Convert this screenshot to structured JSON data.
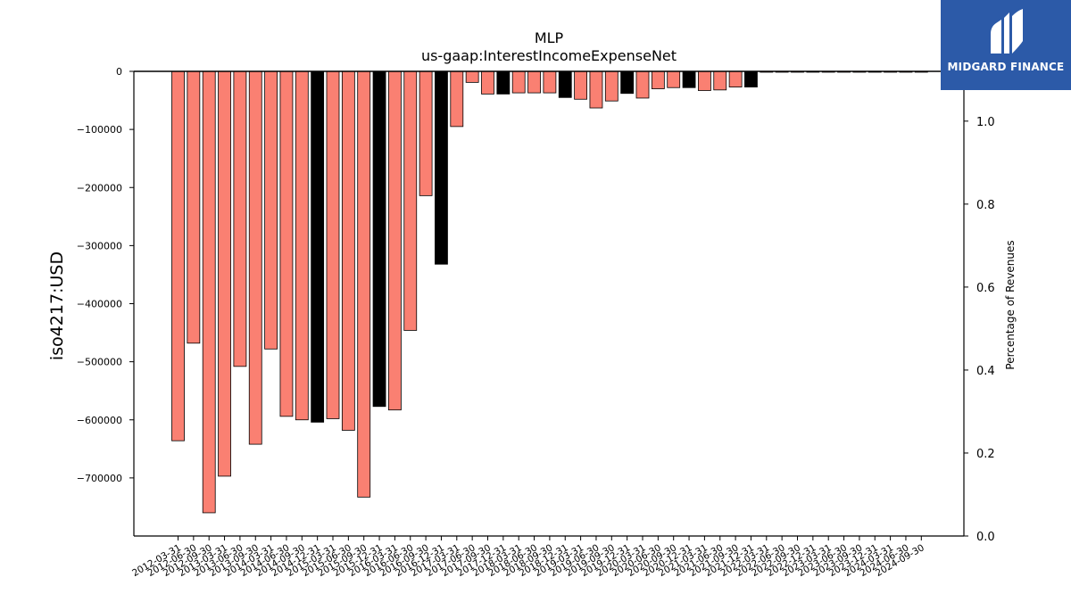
{
  "chart_data": {
    "type": "bar",
    "title": "MLP",
    "subtitle": "us-gaap:InterestIncomeExpenseNet",
    "ylabel": "iso4217:USD",
    "ylabel_right": "Percentage of Revenues",
    "ylim": [
      -800000,
      0
    ],
    "ylim_right": [
      0.0,
      1.12
    ],
    "yticks": [
      0,
      -100000,
      -200000,
      -300000,
      -400000,
      -500000,
      -600000,
      -700000
    ],
    "yticks_right": [
      "0.0",
      "0.2",
      "0.4",
      "0.6",
      "0.8",
      "1.0"
    ],
    "grid": false,
    "colors": {
      "quarter": "#fa8072",
      "year_end": "#000000"
    },
    "categories": [
      "2012-03-31",
      "2012-06-30",
      "2012-09-30",
      "2013-03-31",
      "2013-06-30",
      "2013-09-30",
      "2014-03-31",
      "2014-06-30",
      "2014-09-30",
      "2014-12-31",
      "2015-03-31",
      "2015-06-30",
      "2015-09-30",
      "2015-12-31",
      "2016-03-31",
      "2016-06-30",
      "2016-09-30",
      "2016-12-31",
      "2017-03-31",
      "2017-06-30",
      "2017-09-30",
      "2017-12-31",
      "2018-03-31",
      "2018-06-30",
      "2018-09-30",
      "2018-12-31",
      "2019-03-31",
      "2019-06-30",
      "2019-09-30",
      "2019-12-31",
      "2020-03-31",
      "2020-06-30",
      "2020-09-30",
      "2020-12-31",
      "2021-03-31",
      "2021-06-30",
      "2021-09-30",
      "2021-12-31",
      "2022-03-31",
      "2022-06-30",
      "2022-09-30",
      "2022-12-31",
      "2023-03-31",
      "2023-06-30",
      "2023-09-30",
      "2023-12-31",
      "2024-03-31",
      "2024-06-30",
      "2024-09-30"
    ],
    "values": [
      -636000,
      -468000,
      -760000,
      -697000,
      -508000,
      -642000,
      -478000,
      -594000,
      -600000,
      -604000,
      -598000,
      -618000,
      -733000,
      -577000,
      -583000,
      -446000,
      -214000,
      -332000,
      -95000,
      -19000,
      -39000,
      -39000,
      -37000,
      -37000,
      -37000,
      -45000,
      -48000,
      -63000,
      -51000,
      -38000,
      -46000,
      -30000,
      -28000,
      -28000,
      -33000,
      -32000,
      -27000,
      -27000,
      -1500,
      -1500,
      -1500,
      -1500,
      -1500,
      -1500,
      -1500,
      -1500,
      -1500,
      -1500,
      -1500
    ],
    "bar_kind": [
      "q",
      "q",
      "q",
      "q",
      "q",
      "q",
      "q",
      "q",
      "q",
      "y",
      "q",
      "q",
      "q",
      "y",
      "q",
      "q",
      "q",
      "y",
      "q",
      "q",
      "q",
      "y",
      "q",
      "q",
      "q",
      "y",
      "q",
      "q",
      "q",
      "y",
      "q",
      "q",
      "q",
      "y",
      "q",
      "q",
      "q",
      "y",
      "q",
      "q",
      "q",
      "y",
      "q",
      "q",
      "q",
      "y",
      "q",
      "q",
      "q"
    ]
  },
  "logo": {
    "text": "MIDGARD FINANCE"
  }
}
